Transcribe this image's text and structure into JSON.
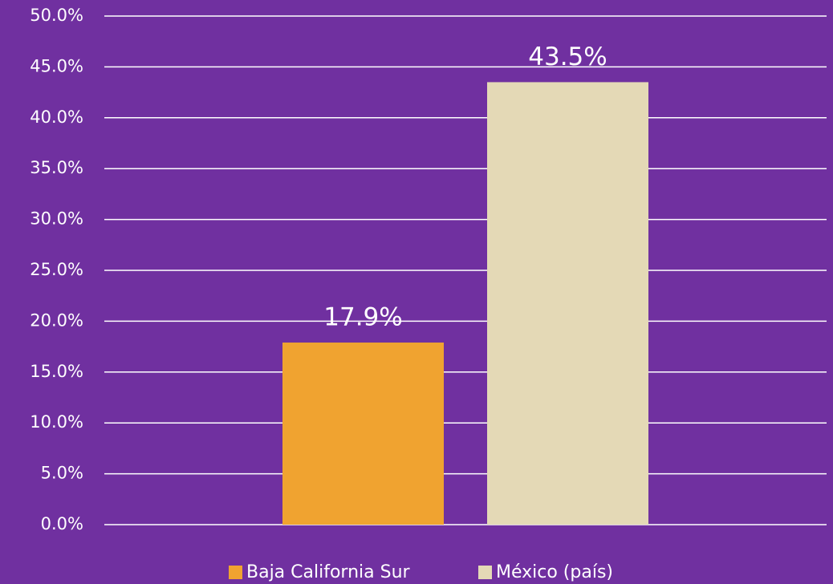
{
  "chart_data": {
    "type": "bar",
    "categories": [
      null
    ],
    "series": [
      {
        "name": "Baja California Sur",
        "color": "#f0a330",
        "values": [
          17.9
        ],
        "value_labels": [
          "17.9%"
        ]
      },
      {
        "name": "México (país)",
        "color": "#e4d9b6",
        "values": [
          43.5
        ],
        "value_labels": [
          "43.5%"
        ]
      }
    ],
    "ylim": [
      0,
      50
    ],
    "yticks": [
      {
        "value": 0,
        "label": "0.0%"
      },
      {
        "value": 5,
        "label": "5.0%"
      },
      {
        "value": 10,
        "label": "10.0%"
      },
      {
        "value": 15,
        "label": "15.0%"
      },
      {
        "value": 20,
        "label": "20.0%"
      },
      {
        "value": 25,
        "label": "25.0%"
      },
      {
        "value": 30,
        "label": "30.0%"
      },
      {
        "value": 35,
        "label": "35.0%"
      },
      {
        "value": 40,
        "label": "40.0%"
      },
      {
        "value": 45,
        "label": "45.0%"
      },
      {
        "value": 50,
        "label": "50.0%"
      }
    ],
    "grid": true,
    "legend": "bottom",
    "background": "#7030a0"
  }
}
